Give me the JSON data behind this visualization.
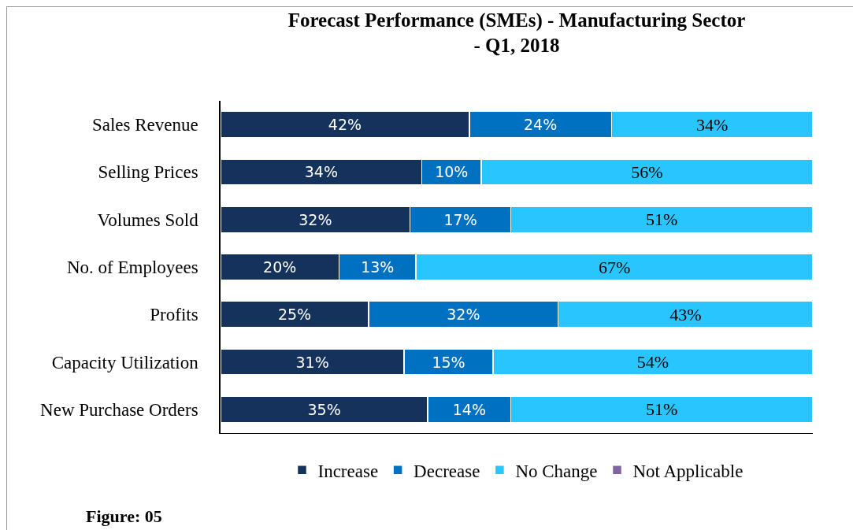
{
  "chart_data": {
    "type": "bar",
    "orientation": "horizontal",
    "stacked": true,
    "title": "Forecast Performance (SMEs) - Manufacturing Sector\n- Q1, 2018",
    "categories": [
      "Sales Revenue",
      "Selling Prices",
      "Volumes Sold",
      "No. of Employees",
      "Profits",
      "Capacity Utilization",
      "New Purchase Orders"
    ],
    "series": [
      {
        "name": "Increase",
        "color": "#14325c",
        "values": [
          42,
          34,
          32,
          20,
          25,
          31,
          35
        ],
        "value_labels": [
          "42%",
          "34%",
          "32%",
          "20%",
          "25%",
          "31%",
          "35%"
        ]
      },
      {
        "name": "Decrease",
        "color": "#0070c0",
        "values": [
          24,
          10,
          17,
          13,
          32,
          15,
          14
        ],
        "value_labels": [
          "24%",
          "10%",
          "17%",
          "13%",
          "32%",
          "15%",
          "14%"
        ]
      },
      {
        "name": "No Change",
        "color": "#29c5ff",
        "values": [
          34,
          56,
          51,
          67,
          43,
          54,
          51
        ],
        "value_labels": [
          "34%",
          "56%",
          "51%",
          "67%",
          "43%",
          "54%",
          "51%"
        ]
      },
      {
        "name": "Not Applicable",
        "color": "#8064a2",
        "values": [
          null,
          null,
          null,
          null,
          null,
          null,
          null
        ]
      }
    ],
    "tick_labels": "y",
    "legend": "bottom",
    "annotations": [
      "Figure: 05"
    ]
  }
}
